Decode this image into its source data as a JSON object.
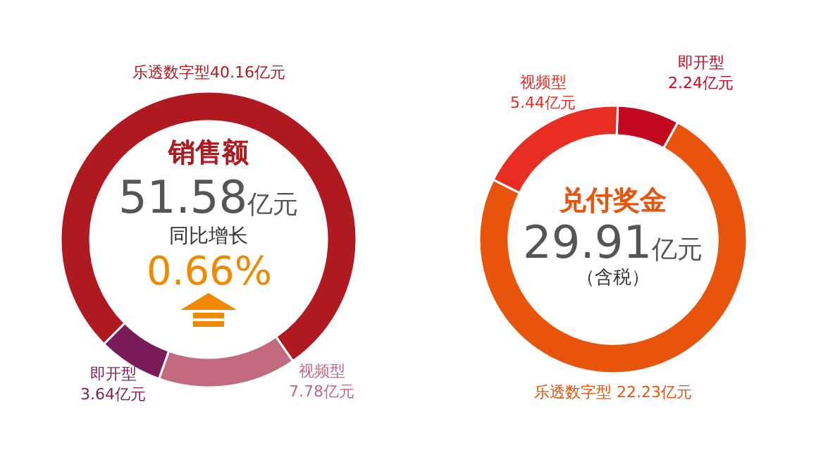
{
  "chart_data": [
    {
      "type": "donut",
      "title": "销售额",
      "categories": [
        "乐透数字型",
        "视频型",
        "即开型"
      ],
      "values": [
        40.16,
        7.78,
        3.64
      ],
      "colors": [
        "#b0191f",
        "#c46a80",
        "#7a1c5a"
      ],
      "value_labels": [
        "40.16亿元",
        "7.78亿元",
        "3.64亿元"
      ],
      "annotations": [
        "51.58亿元",
        "同比增长",
        "0.66%"
      ],
      "legend": false
    },
    {
      "type": "donut",
      "title": "兑付奖金",
      "categories": [
        "即开型",
        "乐透数字型",
        "视频型"
      ],
      "values": [
        2.24,
        22.23,
        5.44
      ],
      "colors": [
        "#c4081f",
        "#e8540c",
        "#e82e22"
      ],
      "value_labels": [
        "2.24亿元",
        "22.23亿元",
        "5.44亿元"
      ],
      "annotations": [
        "29.91亿元",
        "（含税）"
      ],
      "legend": false
    }
  ]
}
